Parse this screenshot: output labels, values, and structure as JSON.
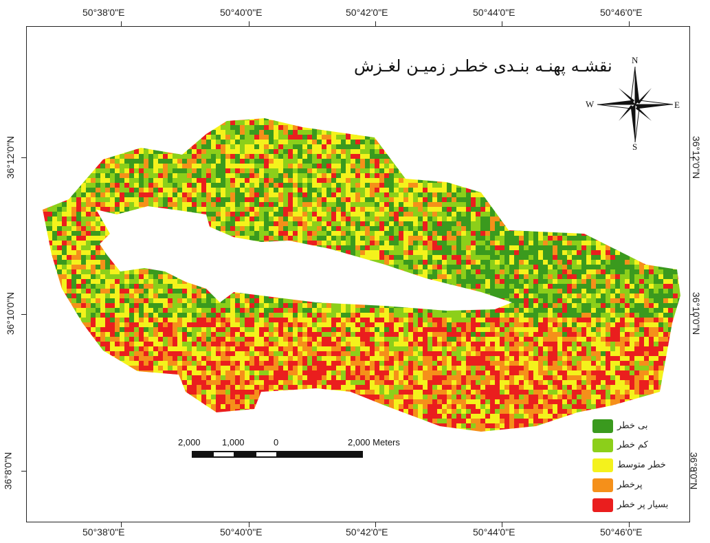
{
  "map": {
    "title": "نقشـه پهنـه بنـدی خطـر زمیـن لغـزش",
    "colors": {
      "none": "#3a9a1e",
      "low": "#8ccf1a",
      "moderate": "#f4f21c",
      "high": "#f5901a",
      "very_high": "#ea1e1e"
    }
  },
  "axes": {
    "top_labels": [
      "50°38'0\"E",
      "50°40'0\"E",
      "50°42'0\"E",
      "50°44'0\"E",
      "50°46'0\"E"
    ],
    "bottom_labels": [
      "50°38'0\"E",
      "50°40'0\"E",
      "50°42'0\"E",
      "50°44'0\"E",
      "50°46'0\"E"
    ],
    "left_labels": [
      "36°12'0\"N",
      "36°10'0\"N",
      "36°8'0\"N"
    ],
    "right_labels": [
      "36°12'0\"N",
      "36°10'0\"N",
      "36°8'0\"N"
    ]
  },
  "compass": {
    "n": "N",
    "s": "S",
    "e": "E",
    "w": "W"
  },
  "scale_bar": {
    "labels": [
      "2,000",
      "1,000",
      "0",
      "2,000 Meters"
    ]
  },
  "legend": [
    {
      "key": "none",
      "label": "بی خطر",
      "color": "#3a9a1e"
    },
    {
      "key": "low",
      "label": "کم خطر",
      "color": "#8ccf1a"
    },
    {
      "key": "moderate",
      "label": "خطر متوسط",
      "color": "#f4f21c"
    },
    {
      "key": "high",
      "label": "پرخطر",
      "color": "#f5901a"
    },
    {
      "key": "very_high",
      "label": "بسیار پر خطر",
      "color": "#ea1e1e"
    }
  ]
}
